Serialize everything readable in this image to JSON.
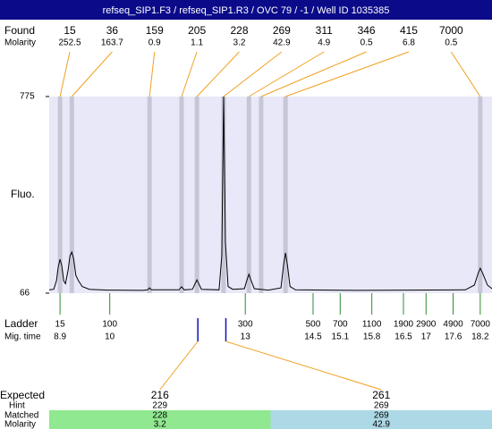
{
  "chart_data": {
    "type": "electropherogram",
    "title": "refseq_SIP1.F3 / refseq_SIP1.R3 / OVC 79 / -1 / Well ID 1035385",
    "y_label": "Fluo.",
    "ylim": [
      66,
      775
    ],
    "yticks": [
      66,
      775
    ],
    "xlim": [
      8.66,
      18.46
    ],
    "found": {
      "label": "Found",
      "molarity_label": "Molarity",
      "sizes": [
        15,
        36,
        159,
        205,
        228,
        269,
        311,
        346,
        415,
        7000
      ],
      "molarity": [
        252.5,
        163.7,
        0.9,
        1.1,
        3.2,
        42.9,
        4.9,
        0.5,
        6.8,
        0.5
      ],
      "times": [
        8.9,
        9.16,
        10.88,
        11.59,
        11.93,
        12.52,
        13.08,
        13.35,
        13.89,
        18.2
      ]
    },
    "trace": {
      "x": [
        8.66,
        8.76,
        8.82,
        8.86,
        8.9,
        8.94,
        8.98,
        9.02,
        9.08,
        9.12,
        9.16,
        9.2,
        9.25,
        9.31,
        9.39,
        9.55,
        9.95,
        10.74,
        10.84,
        10.88,
        10.92,
        11.53,
        11.59,
        11.65,
        11.83,
        11.89,
        11.93,
        11.97,
        12.03,
        12.42,
        12.48,
        12.52,
        12.56,
        12.62,
        12.72,
        12.98,
        13.04,
        13.08,
        13.12,
        13.2,
        13.51,
        13.79,
        13.85,
        13.89,
        13.93,
        13.99,
        14.11,
        15.49,
        17.87,
        18.07,
        18.16,
        18.2,
        18.26,
        18.36,
        18.46
      ],
      "y": [
        78,
        80,
        110,
        160,
        188,
        165,
        110,
        100,
        150,
        200,
        214,
        190,
        130,
        110,
        90,
        80,
        77,
        76,
        78,
        85,
        78,
        78,
        89,
        78,
        80,
        100,
        114,
        100,
        80,
        78,
        200,
        775,
        250,
        90,
        80,
        82,
        115,
        134,
        115,
        82,
        77,
        85,
        170,
        211,
        170,
        90,
        78,
        76,
        78,
        95,
        140,
        156,
        135,
        95,
        82
      ]
    },
    "ladder": {
      "label": "Ladder",
      "time_label": "Mig. time",
      "sizes": [
        15,
        100,
        300,
        500,
        700,
        1100,
        1900,
        2900,
        4900,
        7000
      ],
      "times": [
        8.9,
        10,
        13,
        14.5,
        15.1,
        15.8,
        16.5,
        17,
        17.6,
        18.2
      ]
    },
    "expected": {
      "label": "Expected",
      "hint_label": "Hint",
      "matched_label": "Matched",
      "molarity_label": "Molarity",
      "sizes": [
        216,
        261
      ],
      "hint": [
        229,
        269
      ],
      "matched": [
        228,
        269
      ],
      "molarity": [
        3.2,
        42.9
      ],
      "times": [
        11.95,
        12.57
      ],
      "colors": [
        "#90e890",
        "#add8e6"
      ]
    }
  }
}
